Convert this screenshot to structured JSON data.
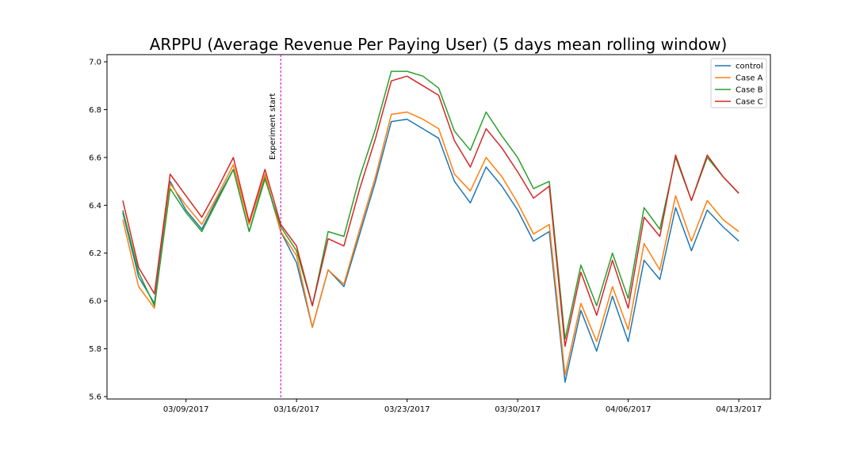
{
  "chart_data": {
    "type": "line",
    "title": "ARPPU (Average Revenue Per Paying User) (5 days mean rolling window)",
    "xlabel": "",
    "ylabel": "",
    "x": [
      "2017-03-05",
      "2017-03-06",
      "2017-03-07",
      "2017-03-08",
      "2017-03-09",
      "2017-03-10",
      "2017-03-11",
      "2017-03-12",
      "2017-03-13",
      "2017-03-14",
      "2017-03-15",
      "2017-03-16",
      "2017-03-17",
      "2017-03-18",
      "2017-03-19",
      "2017-03-20",
      "2017-03-21",
      "2017-03-22",
      "2017-03-23",
      "2017-03-24",
      "2017-03-25",
      "2017-03-26",
      "2017-03-27",
      "2017-03-28",
      "2017-03-29",
      "2017-03-30",
      "2017-03-31",
      "2017-04-01",
      "2017-04-02",
      "2017-04-03",
      "2017-04-04",
      "2017-04-05",
      "2017-04-06",
      "2017-04-07",
      "2017-04-08",
      "2017-04-09",
      "2017-04-10",
      "2017-04-11",
      "2017-04-12",
      "2017-04-13"
    ],
    "xticks": [
      "03/09/2017",
      "03/16/2017",
      "03/23/2017",
      "03/30/2017",
      "04/06/2017",
      "04/13/2017"
    ],
    "xtick_dates": [
      "2017-03-09",
      "2017-03-16",
      "2017-03-23",
      "2017-03-30",
      "2017-04-06",
      "2017-04-13"
    ],
    "xlim": [
      "2017-03-04",
      "2017-04-15"
    ],
    "ylim": [
      5.59,
      7.03
    ],
    "yticks": [
      "5.6",
      "5.8",
      "6.0",
      "6.2",
      "6.4",
      "6.6",
      "6.8",
      "7.0"
    ],
    "ytick_values": [
      5.6,
      5.8,
      6.0,
      6.2,
      6.4,
      6.6,
      6.8,
      7.0
    ],
    "grid": false,
    "legend": "top-right",
    "annotation": {
      "text": "Experiment start",
      "x": "2017-03-15",
      "color": "#bf00bf"
    },
    "series": [
      {
        "name": "control",
        "color": "#1f77b4",
        "values": [
          6.37,
          6.1,
          5.99,
          6.5,
          6.38,
          6.3,
          6.43,
          6.55,
          6.29,
          6.52,
          6.29,
          6.16,
          5.89,
          6.13,
          6.06,
          6.28,
          6.5,
          6.75,
          6.76,
          6.72,
          6.68,
          6.5,
          6.41,
          6.56,
          6.48,
          6.38,
          6.25,
          6.29,
          5.66,
          5.96,
          5.79,
          6.02,
          5.83,
          6.17,
          6.09,
          6.39,
          6.21,
          6.38,
          6.31,
          6.25
        ]
      },
      {
        "name": "Case A",
        "color": "#ff7f0e",
        "values": [
          6.34,
          6.06,
          5.97,
          6.49,
          6.4,
          6.32,
          6.44,
          6.57,
          6.32,
          6.53,
          6.29,
          6.19,
          5.89,
          6.13,
          6.07,
          6.3,
          6.52,
          6.78,
          6.79,
          6.76,
          6.72,
          6.53,
          6.46,
          6.6,
          6.52,
          6.41,
          6.28,
          6.32,
          5.69,
          5.99,
          5.83,
          6.06,
          5.88,
          6.24,
          6.13,
          6.44,
          6.25,
          6.42,
          6.34,
          6.29
        ]
      },
      {
        "name": "Case B",
        "color": "#2ca02c",
        "values": [
          6.38,
          6.12,
          5.98,
          6.47,
          6.37,
          6.29,
          6.42,
          6.55,
          6.29,
          6.51,
          6.31,
          6.21,
          5.98,
          6.29,
          6.27,
          6.52,
          6.72,
          6.96,
          6.96,
          6.94,
          6.89,
          6.71,
          6.63,
          6.79,
          6.69,
          6.6,
          6.47,
          6.5,
          5.84,
          6.15,
          5.98,
          6.2,
          6.01,
          6.39,
          6.3,
          6.6,
          6.42,
          6.6,
          6.52,
          6.45
        ]
      },
      {
        "name": "Case C",
        "color": "#d62728",
        "values": [
          6.42,
          6.14,
          6.03,
          6.53,
          6.44,
          6.35,
          6.47,
          6.6,
          6.33,
          6.55,
          6.32,
          6.23,
          5.98,
          6.26,
          6.23,
          6.47,
          6.68,
          6.92,
          6.94,
          6.9,
          6.86,
          6.67,
          6.56,
          6.72,
          6.64,
          6.54,
          6.43,
          6.48,
          5.81,
          6.12,
          5.94,
          6.17,
          5.97,
          6.35,
          6.27,
          6.61,
          6.42,
          6.61,
          6.52,
          6.45
        ]
      }
    ]
  }
}
